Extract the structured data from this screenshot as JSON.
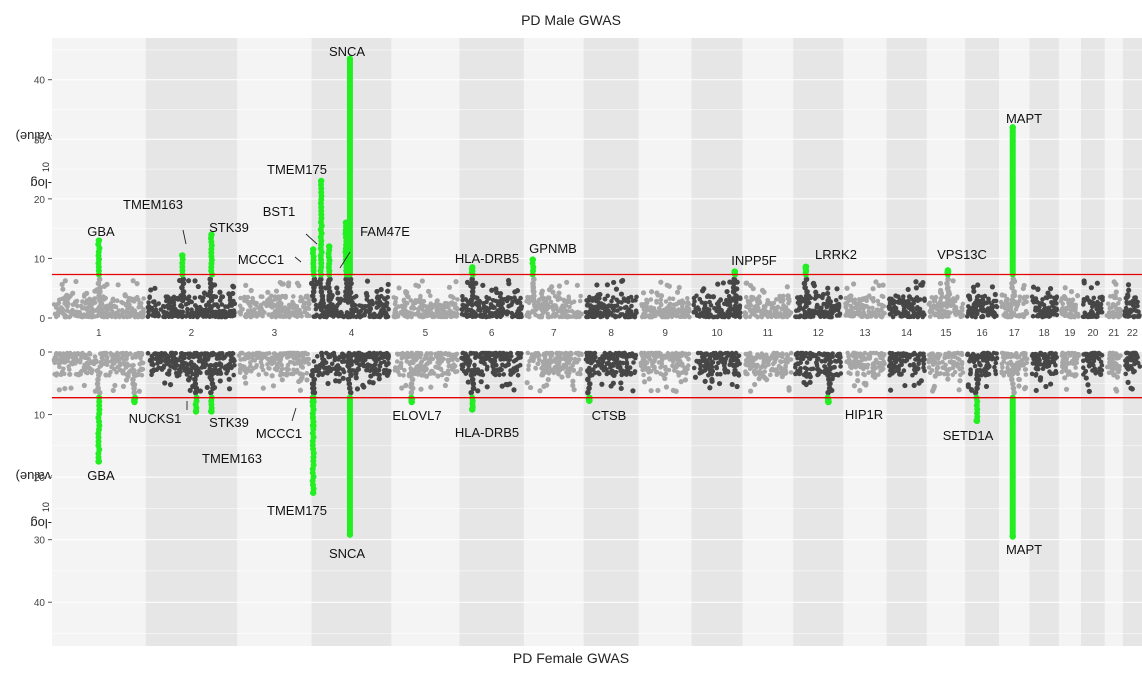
{
  "chart_data": [
    {
      "type": "scatter",
      "title": "PD Male GWAS",
      "ylabel_base": "-log",
      "ylabel_sub": "10",
      "ylabel_tail": "(p-value)",
      "ylim": [
        0,
        47
      ],
      "yticks": [
        0,
        10,
        20,
        30,
        40
      ],
      "significance_line": 7.3,
      "orientation": "up",
      "hits": [
        {
          "chr": "1",
          "pos": 0.5,
          "peak": 13,
          "label": "GBA"
        },
        {
          "chr": "2",
          "pos": 0.4,
          "peak": 10.5,
          "label": "TMEM163"
        },
        {
          "chr": "2",
          "pos": 0.72,
          "peak": 14,
          "label": "STK39"
        },
        {
          "chr": "4",
          "pos": 0.02,
          "peak": 11.5,
          "label": "MCCC1"
        },
        {
          "chr": "4",
          "pos": 0.12,
          "peak": 23,
          "label": "TMEM175"
        },
        {
          "chr": "4",
          "pos": 0.22,
          "peak": 12,
          "label": "BST1"
        },
        {
          "chr": "4",
          "pos": 0.43,
          "peak": 16,
          "label": "FAM47E"
        },
        {
          "chr": "4",
          "pos": 0.48,
          "peak": 43.5,
          "label": "SNCA"
        },
        {
          "chr": "6",
          "pos": 0.2,
          "peak": 8.5,
          "label": "HLA-DRB5"
        },
        {
          "chr": "7",
          "pos": 0.15,
          "peak": 9.8,
          "label": "GPNMB"
        },
        {
          "chr": "10",
          "pos": 0.85,
          "peak": 7.8,
          "label": "INPP5F"
        },
        {
          "chr": "12",
          "pos": 0.25,
          "peak": 8.6,
          "label": "LRRK2"
        },
        {
          "chr": "15",
          "pos": 0.55,
          "peak": 8.0,
          "label": "VPS13C"
        },
        {
          "chr": "17",
          "pos": 0.45,
          "peak": 32,
          "label": "MAPT"
        }
      ]
    },
    {
      "type": "scatter",
      "title": "PD Female GWAS",
      "ylabel_base": "-log",
      "ylabel_sub": "10",
      "ylabel_tail": "(p-value)",
      "ylim": [
        0,
        47
      ],
      "yticks": [
        0,
        10,
        20,
        30,
        40
      ],
      "significance_line": 7.3,
      "orientation": "down",
      "hits": [
        {
          "chr": "1",
          "pos": 0.5,
          "peak": 17.5,
          "label": "GBA"
        },
        {
          "chr": "1",
          "pos": 0.88,
          "peak": 8.0,
          "label": "NUCKS1"
        },
        {
          "chr": "2",
          "pos": 0.55,
          "peak": 9.5,
          "label": "TMEM163"
        },
        {
          "chr": "2",
          "pos": 0.72,
          "peak": 9.5,
          "label": "STK39"
        },
        {
          "chr": "4",
          "pos": 0.02,
          "peak": 11.8,
          "label": "MCCC1"
        },
        {
          "chr": "4",
          "pos": 0.02,
          "peak": 22.5,
          "label": "TMEM175"
        },
        {
          "chr": "4",
          "pos": 0.48,
          "peak": 29.2,
          "label": "SNCA"
        },
        {
          "chr": "5",
          "pos": 0.3,
          "peak": 8.0,
          "label": "ELOVL7"
        },
        {
          "chr": "6",
          "pos": 0.2,
          "peak": 9.2,
          "label": "HLA-DRB5"
        },
        {
          "chr": "8",
          "pos": 0.1,
          "peak": 7.8,
          "label": "CTSB"
        },
        {
          "chr": "12",
          "pos": 0.7,
          "peak": 8.0,
          "label": "HIP1R"
        },
        {
          "chr": "16",
          "pos": 0.35,
          "peak": 11.0,
          "label": "SETD1A"
        },
        {
          "chr": "17",
          "pos": 0.45,
          "peak": 29.5,
          "label": "MAPT"
        }
      ]
    }
  ],
  "chromosomes": [
    {
      "name": "1",
      "size": 249
    },
    {
      "name": "2",
      "size": 243
    },
    {
      "name": "3",
      "size": 198
    },
    {
      "name": "4",
      "size": 212
    },
    {
      "name": "5",
      "size": 181
    },
    {
      "name": "6",
      "size": 171
    },
    {
      "name": "7",
      "size": 159
    },
    {
      "name": "8",
      "size": 146
    },
    {
      "name": "9",
      "size": 141
    },
    {
      "name": "10",
      "size": 135
    },
    {
      "name": "11",
      "size": 135
    },
    {
      "name": "12",
      "size": 133
    },
    {
      "name": "13",
      "size": 115
    },
    {
      "name": "14",
      "size": 107
    },
    {
      "name": "15",
      "size": 102
    },
    {
      "name": "16",
      "size": 90
    },
    {
      "name": "17",
      "size": 81
    },
    {
      "name": "18",
      "size": 78
    },
    {
      "name": "19",
      "size": 59
    },
    {
      "name": "20",
      "size": 63
    },
    {
      "name": "21",
      "size": 48
    },
    {
      "name": "22",
      "size": 51
    }
  ],
  "colors": {
    "odd_chr": "#a6a6a6",
    "even_chr": "#464646",
    "hit": "#22ee22",
    "threshold": "#e60000",
    "band_light": "#f4f4f4",
    "band_dark": "#e6e6e6"
  }
}
